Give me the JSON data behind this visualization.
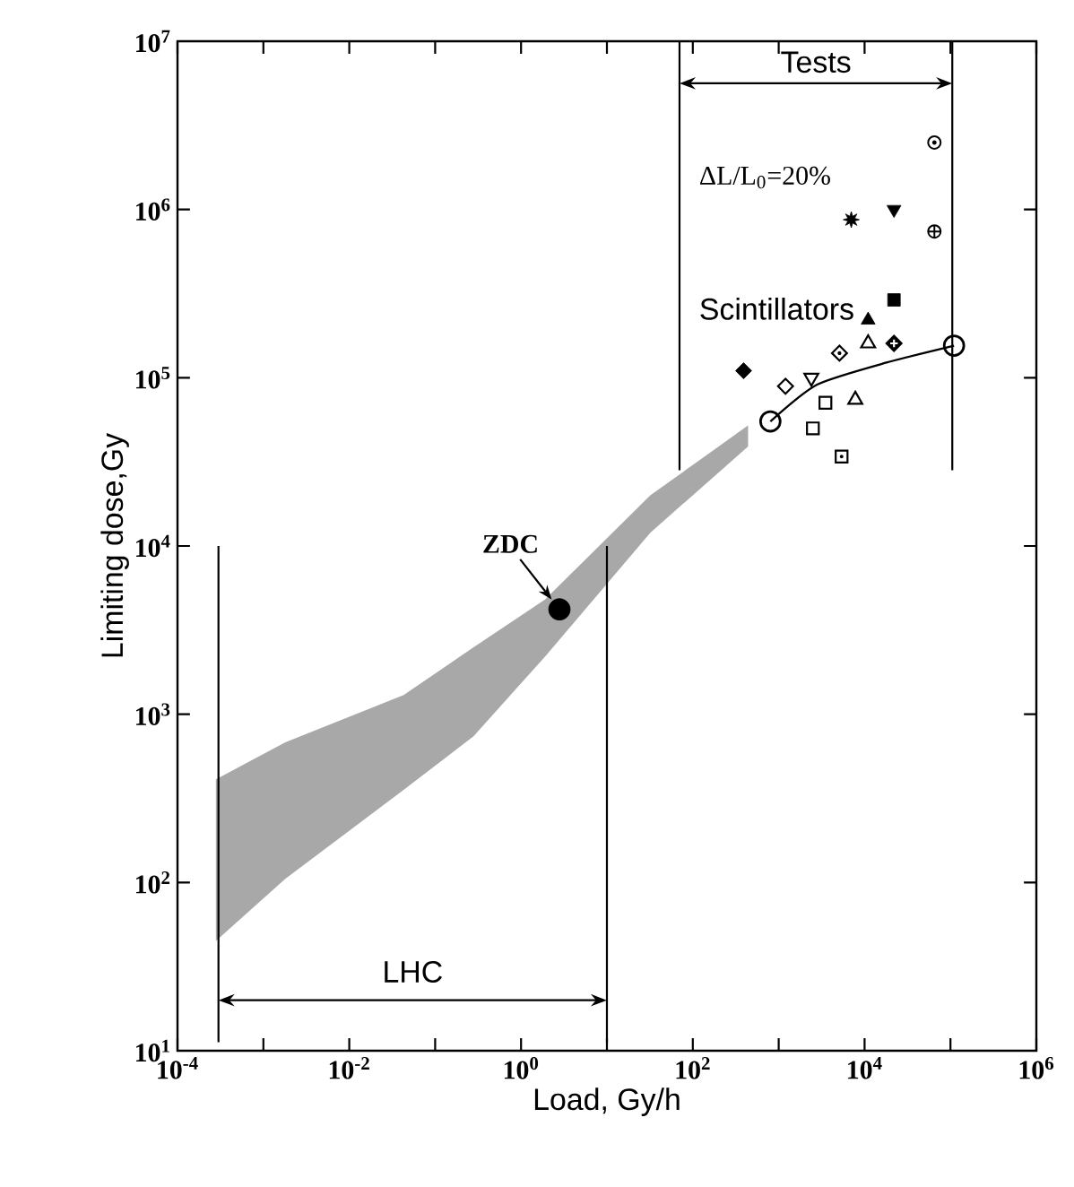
{
  "chart_data": {
    "type": "scatter",
    "xlabel": "Load, Gy/h",
    "ylabel": "Limiting dose,Gy",
    "log": "xy",
    "xlim": [
      0.0001,
      1000000
    ],
    "ylim": [
      10,
      10000000
    ],
    "xticks": [
      {
        "value": 0.0001,
        "label": "10$^{-4}$"
      },
      {
        "value": 0.001,
        "label": null
      },
      {
        "value": 0.01,
        "label": "10$^{-2}$"
      },
      {
        "value": 0.1,
        "label": null
      },
      {
        "value": 1,
        "label": "10$^{0}$"
      },
      {
        "value": 10,
        "label": null
      },
      {
        "value": 100,
        "label": "10$^{2}$"
      },
      {
        "value": 1000,
        "label": null
      },
      {
        "value": 10000,
        "label": "10$^{4}$"
      },
      {
        "value": 100000,
        "label": null
      },
      {
        "value": 1000000,
        "label": "10$^{6}$"
      }
    ],
    "yticks": [
      {
        "value": 10,
        "label": "10$^{1}$"
      },
      {
        "value": 100,
        "label": "10$^{2}$"
      },
      {
        "value": 1000,
        "label": "10$^{3}$"
      },
      {
        "value": 10000,
        "label": "10$^{4}$"
      },
      {
        "value": 100000,
        "label": "10$^{5}$"
      },
      {
        "value": 1000000,
        "label": "10$^{6}$"
      },
      {
        "value": 10000000,
        "label": "10$^{7}$"
      }
    ],
    "series": [
      {
        "type": "line",
        "color": "#a8a8a8",
        "x": [
          0.00028,
          0.0018,
          0.043,
          0.28,
          1.9,
          32,
          440
        ],
        "values": [
          null,
          null,
          null,
          null,
          null,
          null,
          null
        ],
        "lower": [
          45,
          105,
          355,
          740,
          2200,
          12000,
          39000
        ],
        "upper": [
          410,
          680,
          1300,
          2500,
          4800,
          20000,
          52000
        ]
      },
      {
        "type": "line",
        "color": "#000000",
        "x": [
          800,
          2800,
          18000,
          110000
        ],
        "values": [
          55000,
          91000,
          123000,
          155000
        ]
      },
      {
        "color": "#000000",
        "marker": "circle",
        "x": [
          800,
          110000
        ],
        "values": [
          55000,
          155000
        ]
      },
      {
        "color": "#000000",
        "marker": "circle-filled",
        "x": [
          2.8
        ],
        "values": [
          4200
        ]
      },
      {
        "color": "#000000",
        "marker": "circle-dot",
        "x": [
          65000
        ],
        "values": [
          2500000
        ]
      },
      {
        "color": "#000000",
        "marker": "star",
        "x": [
          7000
        ],
        "values": [
          870000
        ]
      },
      {
        "color": "#000000",
        "marker": "triangle-down-filled",
        "x": [
          22000
        ],
        "values": [
          1000000
        ]
      },
      {
        "color": "#000000",
        "marker": "cross",
        "x": [
          65000
        ],
        "values": [
          740000
        ]
      },
      {
        "color": "#000000",
        "marker": "square-filled",
        "x": [
          22000
        ],
        "values": [
          290000
        ]
      },
      {
        "color": "#000000",
        "marker": "triangle-filled",
        "x": [
          11000
        ],
        "values": [
          220000
        ]
      },
      {
        "color": "#000000",
        "marker": "diamond-dot",
        "x": [
          5100
        ],
        "values": [
          140000
        ]
      },
      {
        "color": "#000000",
        "marker": "triangle",
        "x": [
          11000
        ],
        "values": [
          160000
        ]
      },
      {
        "color": "#000000",
        "marker": "diamond-plus",
        "x": [
          22000
        ],
        "values": [
          160000
        ]
      },
      {
        "color": "#000000",
        "marker": "diamond-filled",
        "x": [
          390
        ],
        "values": [
          110000
        ]
      },
      {
        "color": "#000000",
        "marker": "diamond",
        "x": [
          1200
        ],
        "values": [
          89000
        ]
      },
      {
        "color": "#000000",
        "marker": "triangle-down",
        "x": [
          2400
        ],
        "values": [
          100000
        ]
      },
      {
        "color": "#000000",
        "marker": "square",
        "x": [
          3500
        ],
        "values": [
          71000
        ]
      },
      {
        "color": "#000000",
        "marker": "triangle",
        "x": [
          7800
        ],
        "values": [
          74000
        ]
      },
      {
        "color": "#000000",
        "marker": "square",
        "x": [
          2500
        ],
        "values": [
          50000
        ]
      },
      {
        "color": "#000000",
        "marker": "square-dot",
        "x": [
          5400
        ],
        "values": [
          34000
        ]
      }
    ],
    "ref_lines": [
      {
        "axis": "x",
        "value": 0.0003
      },
      {
        "axis": "x",
        "value": 10
      },
      {
        "axis": "x",
        "value": 70
      },
      {
        "axis": "x",
        "value": 105000
      }
    ],
    "annotations": [
      "LHC",
      "Tests",
      "ΔL/L$_{0}$=20%",
      "Scintillators",
      {
        "text": "ZDC",
        "x": 2.8,
        "y": 4200
      }
    ]
  }
}
